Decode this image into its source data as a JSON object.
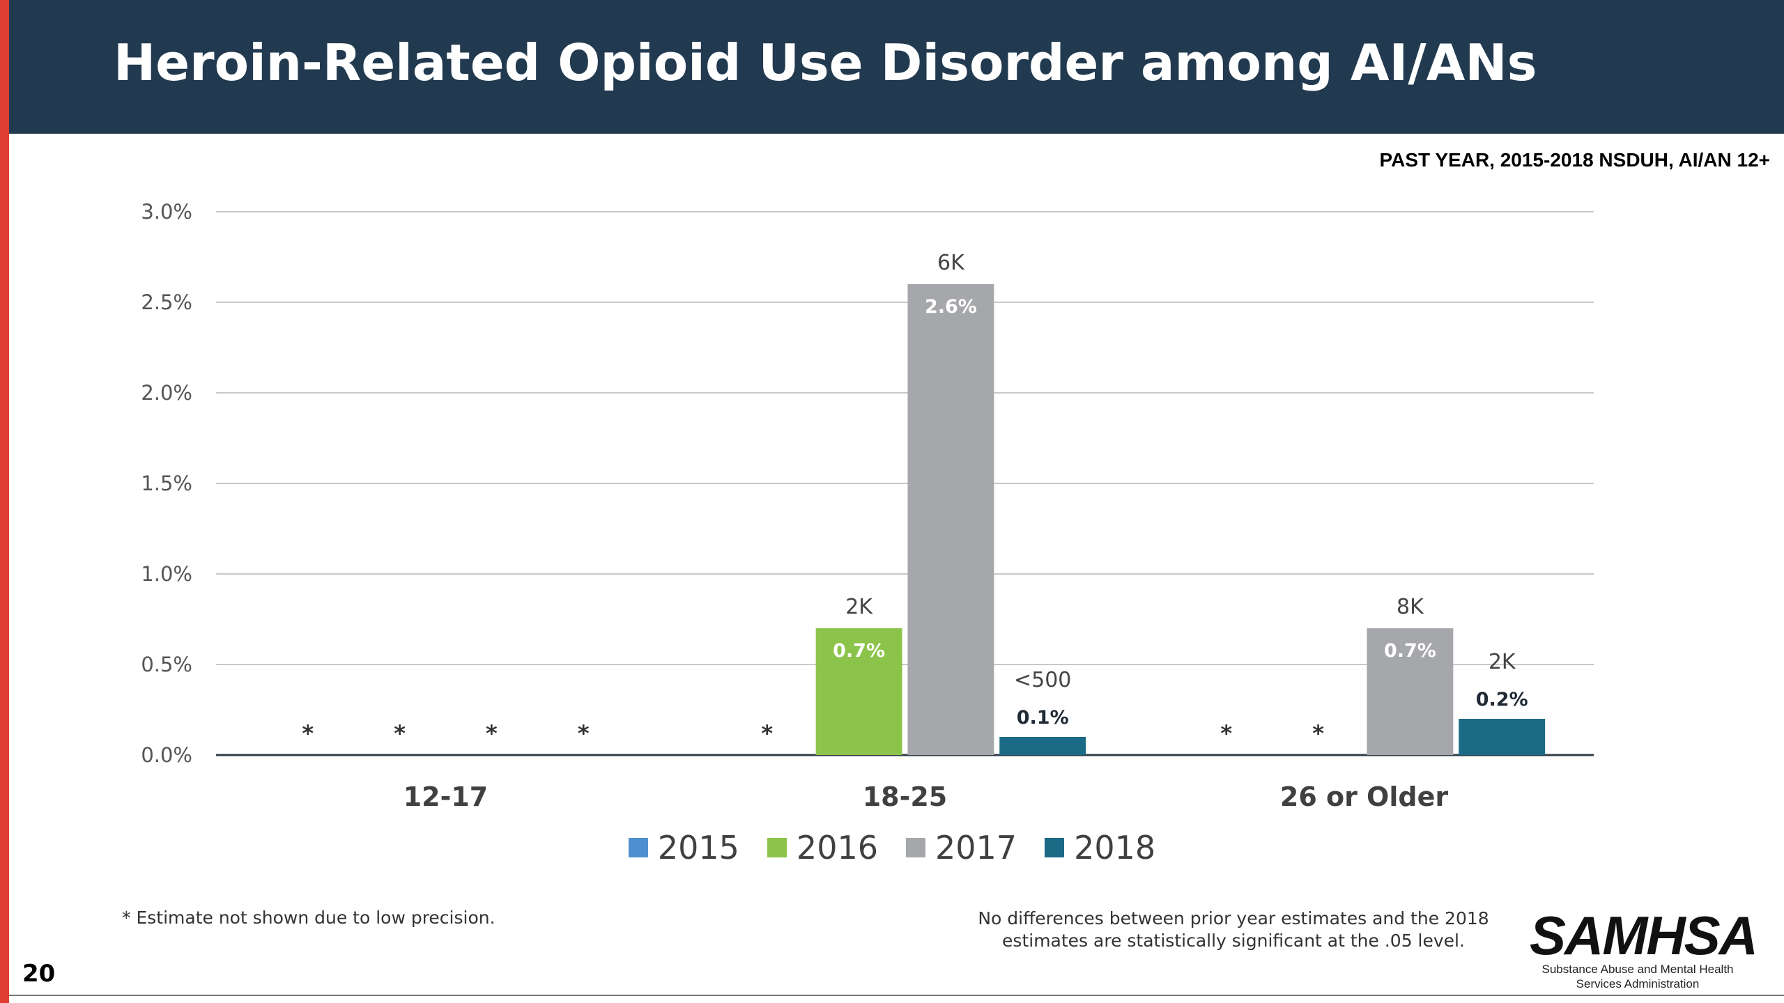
{
  "slide": {
    "title": "Heroin-Related Opioid Use Disorder among AI/ANs",
    "source_tag": "PAST YEAR, 2015-2018 NSDUH, AI/AN 12+",
    "footnote": "* Estimate not shown due to low precision.",
    "significance_note": "No differences between prior year estimates and the 2018 estimates are statistically significant at the .05 level.",
    "page_number": "20",
    "logo": {
      "text": "SAMHSA",
      "subtitle_line1": "Substance Abuse and Mental Health",
      "subtitle_line2": "Services Administration"
    }
  },
  "chart_data": {
    "type": "bar",
    "categories": [
      "12-17",
      "18-25",
      "26 or Older"
    ],
    "ylim": [
      0,
      3.0
    ],
    "yticks": [
      "0.0%",
      "0.5%",
      "1.0%",
      "1.5%",
      "2.0%",
      "2.5%",
      "3.0%"
    ],
    "grid": true,
    "legend_position": "bottom-center",
    "series": [
      {
        "name": "2015",
        "color": "#4e8fcf",
        "values": [
          null,
          null,
          null
        ],
        "pct_labels": [
          "",
          "",
          ""
        ],
        "count_labels": [
          "",
          "",
          ""
        ],
        "suppressed": [
          true,
          true,
          true
        ]
      },
      {
        "name": "2016",
        "color": "#8cc34a",
        "values": [
          null,
          0.7,
          null
        ],
        "pct_labels": [
          "",
          "0.7%",
          ""
        ],
        "count_labels": [
          "",
          "2K",
          ""
        ],
        "suppressed": [
          true,
          false,
          true
        ]
      },
      {
        "name": "2017",
        "color": "#a5a7aa",
        "values": [
          null,
          2.6,
          0.7
        ],
        "pct_labels": [
          "",
          "2.6%",
          "0.7%"
        ],
        "count_labels": [
          "",
          "6K",
          "8K"
        ],
        "suppressed": [
          true,
          false,
          false
        ]
      },
      {
        "name": "2018",
        "color": "#1c6b86",
        "values": [
          null,
          0.1,
          0.2
        ],
        "pct_labels": [
          "",
          "0.1%",
          "0.2%"
        ],
        "count_labels": [
          "",
          "<500",
          "2K"
        ],
        "suppressed": [
          true,
          false,
          false
        ]
      }
    ],
    "suppressed_marker": "*"
  }
}
